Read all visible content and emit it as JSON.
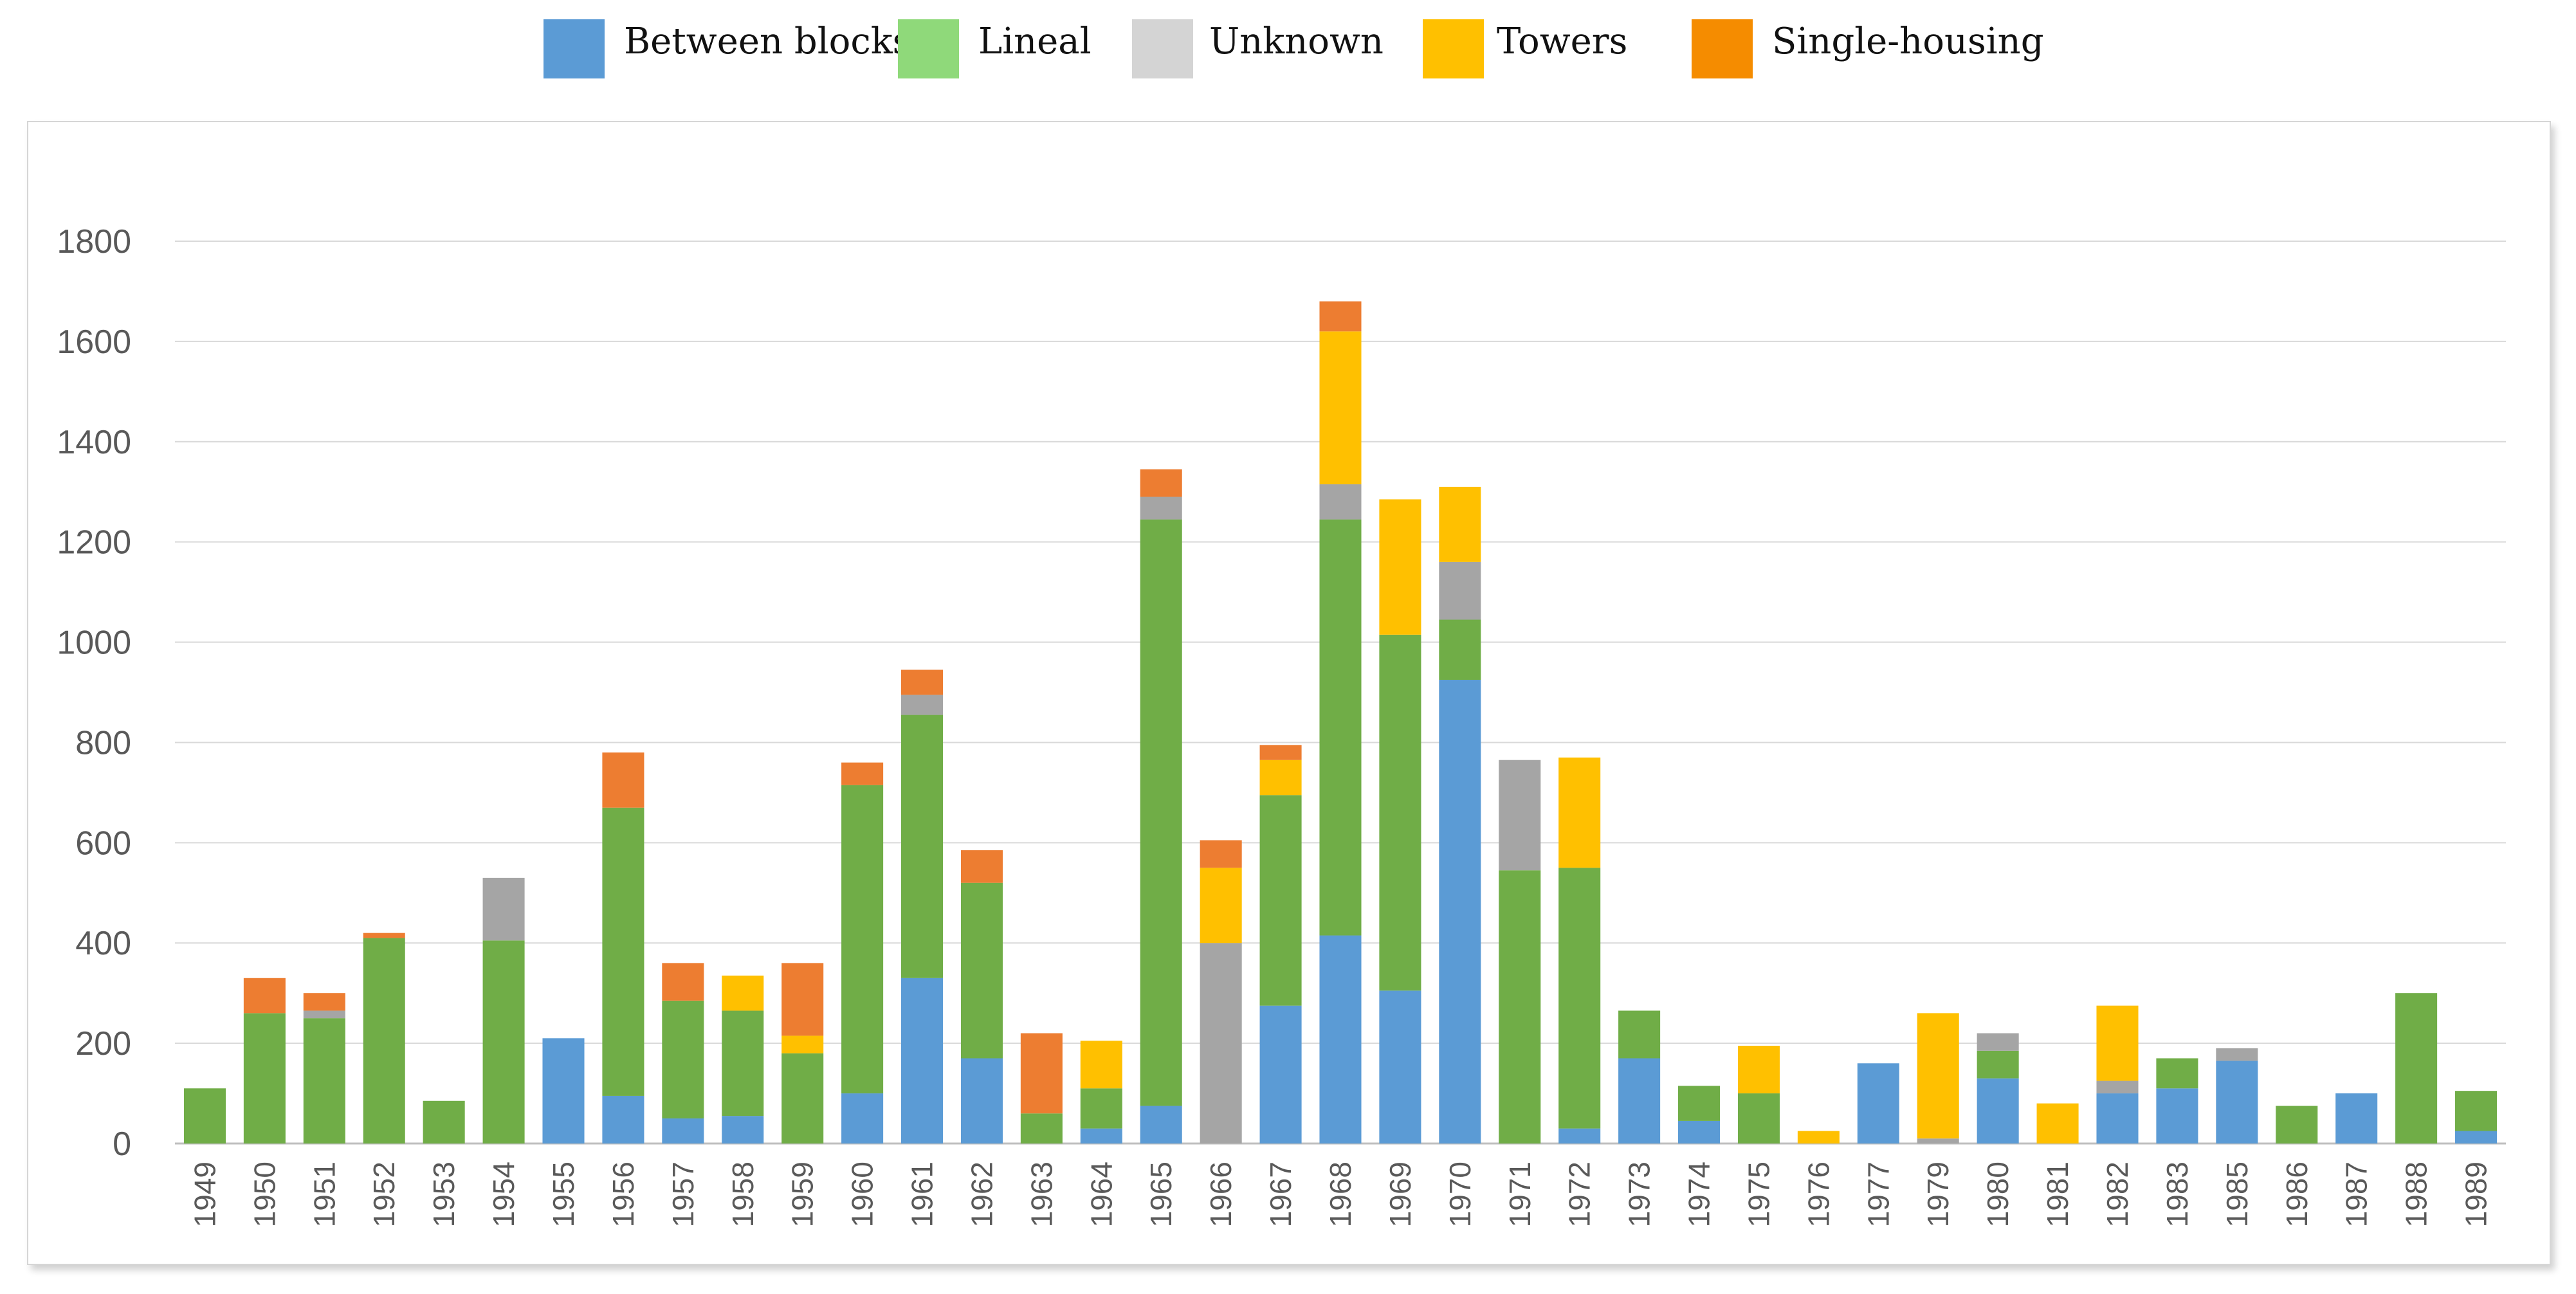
{
  "legend": {
    "items": [
      {
        "key": "between_blocks",
        "label": "Between blocks",
        "color": "#5b9bd5"
      },
      {
        "key": "lineal",
        "label": "Lineal",
        "color": "#8fd97a"
      },
      {
        "key": "unknown",
        "label": "Unknown",
        "color": "#d4d4d4"
      },
      {
        "key": "towers",
        "label": "Towers",
        "color": "#ffc000"
      },
      {
        "key": "single_housing",
        "label": "Single-housing",
        "color": "#f58c00"
      }
    ]
  },
  "chart_data": {
    "type": "bar",
    "stacked": true,
    "title": "",
    "xlabel": "",
    "ylabel": "",
    "ylim": [
      0,
      1800
    ],
    "yticks": [
      0,
      200,
      400,
      600,
      800,
      1000,
      1200,
      1400,
      1600,
      1800
    ],
    "grid": true,
    "legend_position": "top",
    "categories": [
      "1949",
      "1950",
      "1951",
      "1952",
      "1953",
      "1954",
      "1955",
      "1956",
      "1957",
      "1958",
      "1959",
      "1960",
      "1961",
      "1962",
      "1963",
      "1964",
      "1965",
      "1966",
      "1967",
      "1968",
      "1969",
      "1970",
      "1971",
      "1972",
      "1973",
      "1974",
      "1975",
      "1976",
      "1977",
      "1979",
      "1980",
      "1981",
      "1982",
      "1983",
      "1985",
      "1986",
      "1987",
      "1988",
      "1989"
    ],
    "series": [
      {
        "name": "Between blocks",
        "color": "#5b9bd5",
        "values": [
          0,
          0,
          0,
          0,
          0,
          0,
          210,
          95,
          50,
          55,
          0,
          100,
          330,
          170,
          0,
          30,
          75,
          0,
          275,
          415,
          305,
          925,
          0,
          30,
          170,
          45,
          0,
          0,
          160,
          0,
          130,
          0,
          100,
          110,
          165,
          0,
          100,
          0,
          25
        ]
      },
      {
        "name": "Lineal",
        "color": "#70ad47",
        "values": [
          110,
          260,
          250,
          410,
          85,
          405,
          0,
          575,
          235,
          210,
          180,
          615,
          525,
          350,
          60,
          80,
          1170,
          0,
          420,
          830,
          710,
          120,
          545,
          520,
          95,
          70,
          100,
          0,
          0,
          0,
          55,
          0,
          0,
          60,
          0,
          75,
          0,
          300,
          80
        ]
      },
      {
        "name": "Unknown",
        "color": "#a5a5a5",
        "values": [
          0,
          0,
          15,
          0,
          0,
          125,
          0,
          0,
          0,
          0,
          0,
          0,
          40,
          0,
          0,
          0,
          45,
          400,
          0,
          70,
          0,
          115,
          220,
          0,
          0,
          0,
          0,
          0,
          0,
          10,
          35,
          0,
          25,
          0,
          25,
          0,
          0,
          0,
          0
        ]
      },
      {
        "name": "Towers",
        "color": "#ffc000",
        "values": [
          0,
          0,
          0,
          0,
          0,
          0,
          0,
          0,
          0,
          70,
          35,
          0,
          0,
          0,
          0,
          95,
          0,
          150,
          70,
          305,
          270,
          150,
          0,
          220,
          0,
          0,
          95,
          25,
          0,
          250,
          0,
          80,
          150,
          0,
          0,
          0,
          0,
          0,
          0
        ]
      },
      {
        "name": "Single-housing",
        "color": "#ed7d31",
        "values": [
          0,
          70,
          35,
          10,
          0,
          0,
          0,
          110,
          75,
          0,
          145,
          45,
          50,
          65,
          160,
          0,
          55,
          55,
          30,
          60,
          0,
          0,
          0,
          0,
          0,
          0,
          0,
          0,
          0,
          0,
          0,
          0,
          0,
          0,
          0,
          0,
          0,
          0,
          0
        ]
      }
    ]
  }
}
